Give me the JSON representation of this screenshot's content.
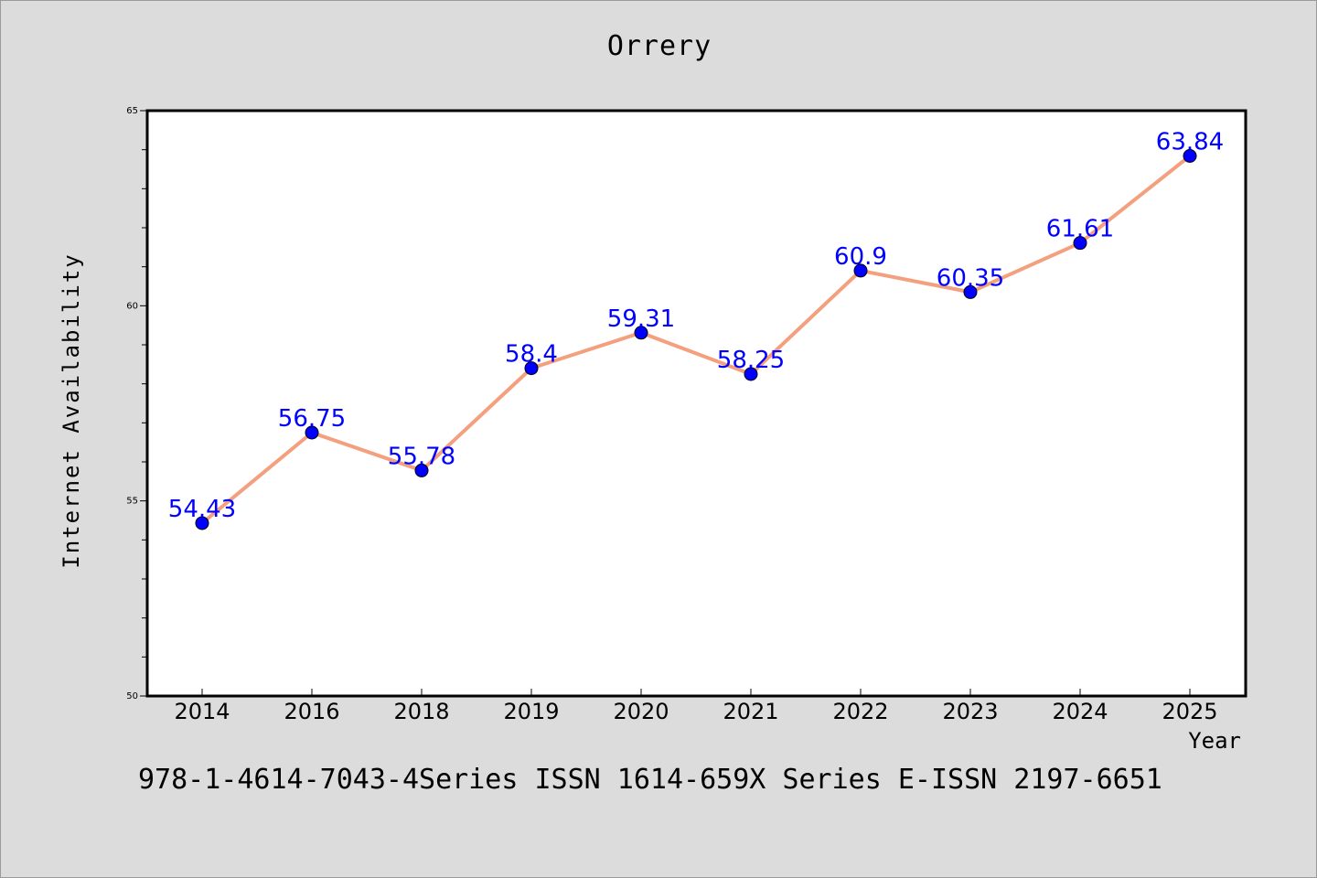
{
  "chart_data": {
    "type": "line",
    "title": "Orrery",
    "xlabel": "Year",
    "ylabel": "Internet Availability",
    "categories": [
      "2014",
      "2016",
      "2018",
      "2019",
      "2020",
      "2021",
      "2022",
      "2023",
      "2024",
      "2025"
    ],
    "series": [
      {
        "values": [
          54.43,
          56.75,
          55.78,
          58.4,
          59.31,
          58.25,
          60.9,
          60.35,
          61.61,
          63.84
        ],
        "labels": [
          "54.43",
          "56.75",
          "55.78",
          "58.4",
          "59.31",
          "58.25",
          "60.9",
          "60.35",
          "61.61",
          "63.84"
        ]
      }
    ],
    "ylim": [
      50,
      65
    ],
    "yticks": [
      "50",
      "55",
      "60",
      "65"
    ],
    "line_color": "#f4a07e",
    "marker_color": "#0000ff",
    "label_color": "#0000ff",
    "grid": false,
    "legend": "none"
  },
  "footer_text": "978-1-4614-7043-4Series ISSN 1614-659X Series E-ISSN 2197-6651"
}
